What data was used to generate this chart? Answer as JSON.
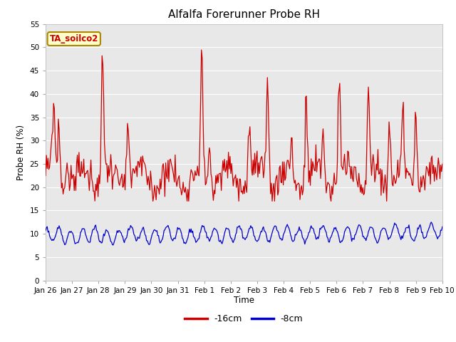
{
  "title": "Alfalfa Forerunner Probe RH",
  "xlabel": "Time",
  "ylabel": "Probe RH (%)",
  "ylim": [
    0,
    55
  ],
  "yticks": [
    0,
    5,
    10,
    15,
    20,
    25,
    30,
    35,
    40,
    45,
    50,
    55
  ],
  "fig_bg_color": "#ffffff",
  "plot_bg_color": "#e8e8e8",
  "legend_label1": "-16cm",
  "legend_label2": "-8cm",
  "legend_color1": "#cc0000",
  "legend_color2": "#0000cc",
  "annotation_text": "TA_soilco2",
  "annotation_bg": "#ffffcc",
  "annotation_border": "#aa8800",
  "annotation_text_color": "#cc0000",
  "n_points": 500,
  "x_start": 0,
  "x_end": 15,
  "xtick_positions": [
    0,
    1,
    2,
    3,
    4,
    5,
    6,
    7,
    8,
    9,
    10,
    11,
    12,
    13,
    14,
    15
  ],
  "xtick_labels": [
    "Jan 26",
    "Jan 27",
    "Jan 28",
    "Jan 29",
    "Jan 30",
    "Jan 31",
    "Feb 1",
    "Feb 2",
    "Feb 3",
    "Feb 4",
    "Feb 5",
    "Feb 6",
    "Feb 7",
    "Feb 8",
    "Feb 9",
    "Feb 10"
  ],
  "grid_color": "#ffffff",
  "red_linewidth": 0.9,
  "blue_linewidth": 0.9
}
